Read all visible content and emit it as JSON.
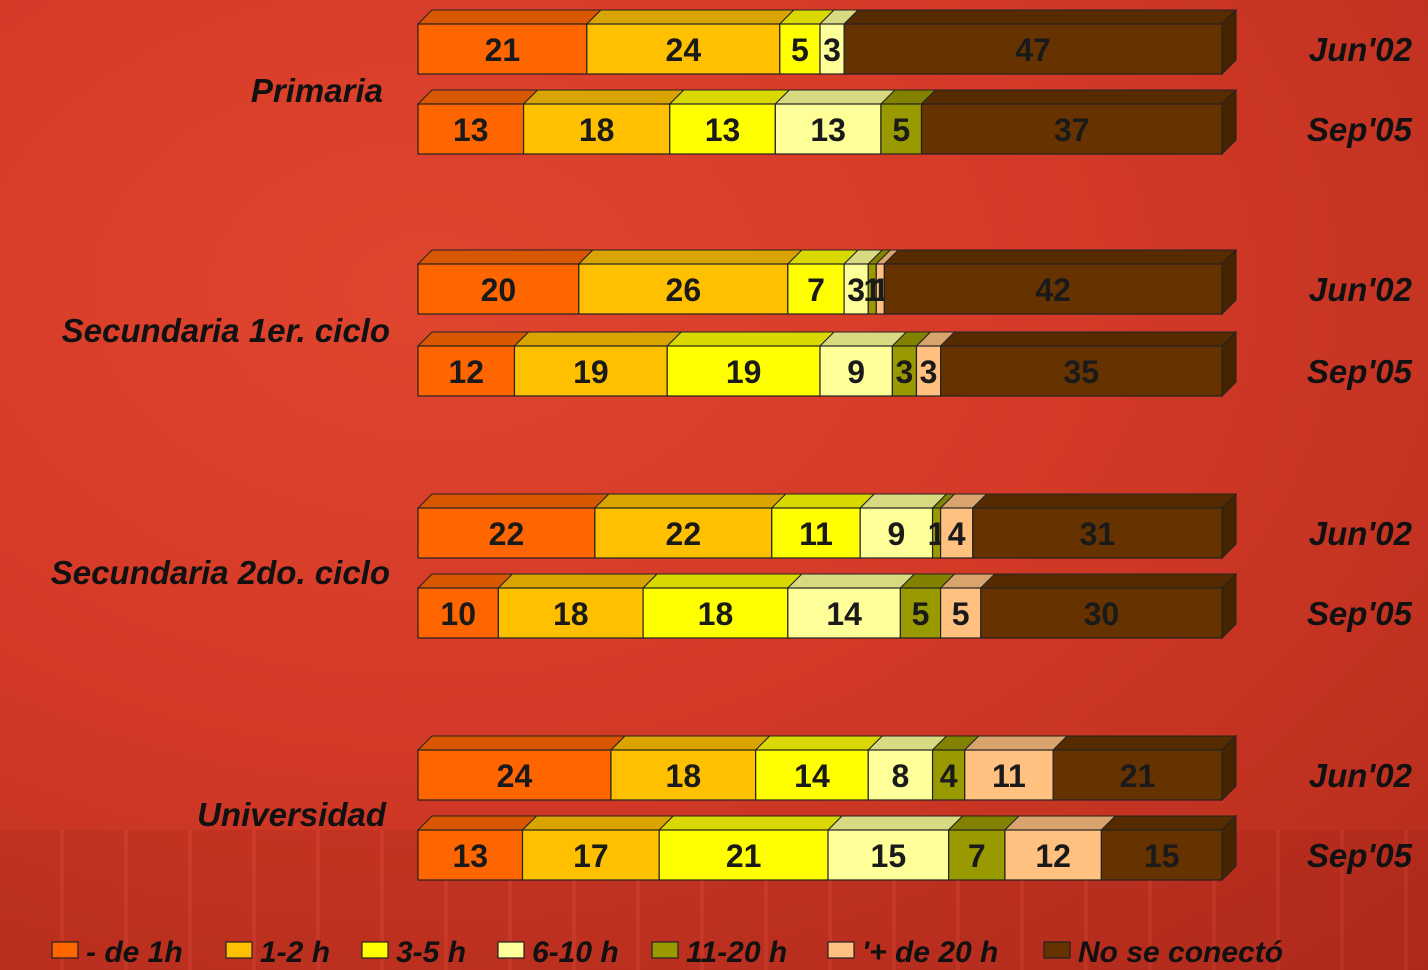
{
  "chart_data": {
    "type": "bar",
    "orientation": "horizontal",
    "stacked": true,
    "percent": true,
    "legend": "bottom",
    "categories_legend": [
      "- de 1h",
      "1-2 h",
      "3-5 h",
      "6-10 h",
      "11-20 h",
      "'+ de 20 h",
      "No se conectó"
    ],
    "colors": [
      "#ff6600",
      "#ffc000",
      "#ffff00",
      "#ffff99",
      "#999900",
      "#ffc080",
      "#663300"
    ],
    "groups": [
      {
        "name": "Primaria",
        "rows": [
          {
            "period": "Jun'02",
            "values": [
              21,
              24,
              5,
              3,
              0,
              0,
              47
            ]
          },
          {
            "period": "Sep'05",
            "values": [
              13,
              18,
              13,
              13,
              5,
              0,
              37
            ]
          }
        ]
      },
      {
        "name": "Secundaria 1er. ciclo",
        "rows": [
          {
            "period": "Jun'02",
            "values": [
              20,
              26,
              7,
              3,
              1,
              1,
              42
            ]
          },
          {
            "period": "Sep'05",
            "values": [
              12,
              19,
              19,
              9,
              3,
              3,
              35
            ]
          }
        ]
      },
      {
        "name": "Secundaria 2do. ciclo",
        "rows": [
          {
            "period": "Jun'02",
            "values": [
              22,
              22,
              11,
              9,
              1,
              4,
              31
            ]
          },
          {
            "period": "Sep'05",
            "values": [
              10,
              18,
              18,
              14,
              5,
              5,
              30
            ]
          }
        ]
      },
      {
        "name": "Universidad",
        "rows": [
          {
            "period": "Jun'02",
            "values": [
              24,
              18,
              14,
              8,
              4,
              11,
              21
            ]
          },
          {
            "period": "Sep'05",
            "values": [
              13,
              17,
              21,
              15,
              7,
              12,
              15
            ]
          }
        ]
      }
    ]
  }
}
